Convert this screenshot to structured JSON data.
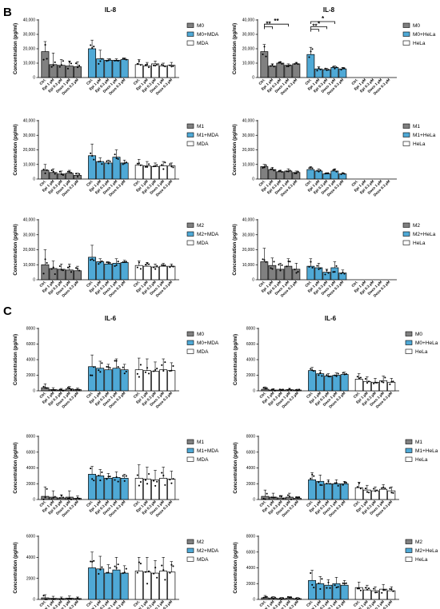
{
  "figure": {
    "panels": [
      {
        "letter": "B"
      },
      {
        "letter": "C"
      }
    ]
  },
  "x_categories": [
    "Ctrl.",
    "Epi 1 µM",
    "Epi 0.3 µM",
    "Doxo 1 µM",
    "Doxo 0.3 µM"
  ],
  "colors": {
    "macrophage": "#808080",
    "coculture": "#4fa9d6",
    "tumor": "#ffffff",
    "edge": "#000000"
  },
  "chart_data": [
    {
      "type": "bar",
      "panel": "B",
      "title": "IL-8",
      "ylabel": "Concentration (pg/ml)",
      "ylim": [
        0,
        40000
      ],
      "yticks": [
        "0",
        "10,000",
        "20,000",
        "30,000",
        "40,000"
      ],
      "categories": [
        "Ctrl.",
        "Epi 1 µM",
        "Epi 0.3 µM",
        "Doxo 1 µM",
        "Doxo 0.3 µM"
      ],
      "legend_position": "right",
      "series": [
        {
          "name": "M0",
          "values": [
            18000,
            9000,
            8500,
            8000,
            7500
          ],
          "errors": [
            7000,
            8000,
            4000,
            3500,
            3500
          ]
        },
        {
          "name": "M0+MDA",
          "values": [
            20000,
            13000,
            12000,
            12000,
            12500
          ],
          "errors": [
            6000,
            6000,
            1000,
            1000,
            1000
          ]
        },
        {
          "name": "MDA",
          "values": [
            9000,
            8000,
            9500,
            8000,
            8500
          ],
          "errors": [
            3500,
            2500,
            2000,
            2000,
            2000
          ]
        }
      ],
      "significance": []
    },
    {
      "type": "bar",
      "panel": "B",
      "title": "IL-8",
      "ylabel": "Concentration (pg/ml)",
      "ylim": [
        0,
        40000
      ],
      "yticks": [
        "0",
        "10,000",
        "20,000",
        "30,000",
        "40,000"
      ],
      "categories": [
        "Ctrl.",
        "Epi 1 µM",
        "Epi 0.3 µM",
        "Doxo 1 µM",
        "Doxo 0.3 µM"
      ],
      "legend_position": "right",
      "series": [
        {
          "name": "M0",
          "values": [
            18000,
            8000,
            10000,
            8500,
            9500
          ],
          "errors": [
            5000,
            1500,
            1000,
            1000,
            1000
          ]
        },
        {
          "name": "M0+HeLa",
          "values": [
            16000,
            6000,
            5500,
            7000,
            6000
          ],
          "errors": [
            5000,
            1500,
            1000,
            1000,
            1000
          ]
        },
        {
          "name": "HeLa",
          "values": [
            0,
            0,
            0,
            0,
            0
          ],
          "errors": [
            0,
            0,
            0,
            0,
            0
          ]
        }
      ],
      "significance": [
        {
          "group": 0,
          "from": 0,
          "to": 1,
          "label": "**",
          "level": 3
        },
        {
          "group": 0,
          "from": 0,
          "to": 3,
          "label": "**",
          "level": 4
        },
        {
          "group": 1,
          "from": 0,
          "to": 1,
          "label": "**",
          "level": 2
        },
        {
          "group": 1,
          "from": 0,
          "to": 2,
          "label": "*",
          "level": 3
        },
        {
          "group": 1,
          "from": 0,
          "to": 3,
          "label": "*",
          "level": 5
        }
      ]
    },
    {
      "type": "bar",
      "panel": "B",
      "title": "",
      "ylabel": "Concentration (pg/ml)",
      "ylim": [
        0,
        40000
      ],
      "yticks": [
        "0",
        "10,000",
        "20,000",
        "30,000",
        "40,000"
      ],
      "categories": [
        "Ctrl.",
        "Epi 1 µM",
        "Epi 0.3 µM",
        "Doxo 1 µM",
        "Doxo 0.3 µM"
      ],
      "legend_position": "right",
      "series": [
        {
          "name": "M1",
          "values": [
            6000,
            4500,
            3500,
            4000,
            2500
          ],
          "errors": [
            4000,
            2500,
            2000,
            2000,
            1500
          ]
        },
        {
          "name": "M1+MDA",
          "values": [
            16000,
            12000,
            11000,
            15000,
            11000
          ],
          "errors": [
            8000,
            2500,
            2000,
            5000,
            2000
          ]
        },
        {
          "name": "MDA",
          "values": [
            9500,
            9000,
            8500,
            9000,
            9000
          ],
          "errors": [
            4000,
            3000,
            2500,
            3000,
            2000
          ]
        }
      ],
      "significance": []
    },
    {
      "type": "bar",
      "panel": "B",
      "title": "",
      "ylabel": "Concentration (pg/ml)",
      "ylim": [
        0,
        40000
      ],
      "yticks": [
        "0",
        "10,000",
        "20,000",
        "30,000",
        "40,000"
      ],
      "categories": [
        "Ctrl.",
        "Epi 1 µM",
        "Epi 0.3 µM",
        "Doxo 1 µM",
        "Doxo 0.3 µM"
      ],
      "legend_position": "right",
      "series": [
        {
          "name": "M1",
          "values": [
            8500,
            6500,
            5000,
            5500,
            4500
          ],
          "errors": [
            1500,
            1500,
            1000,
            1500,
            1000
          ]
        },
        {
          "name": "M1+HeLa",
          "values": [
            6500,
            5500,
            3500,
            5500,
            3500
          ],
          "errors": [
            2000,
            1500,
            800,
            1500,
            800
          ]
        },
        {
          "name": "HeLa",
          "values": [
            0,
            0,
            0,
            0,
            0
          ],
          "errors": [
            0,
            0,
            0,
            0,
            0
          ]
        }
      ],
      "significance": []
    },
    {
      "type": "bar",
      "panel": "B",
      "title": "",
      "ylabel": "Concentration (pg/ml)",
      "ylim": [
        0,
        40000
      ],
      "yticks": [
        "0",
        "10,000",
        "20,000",
        "30,000",
        "40,000"
      ],
      "categories": [
        "Ctrl.",
        "Epi 1 µM",
        "Epi 0.3 µM",
        "Doxo 1 µM",
        "Doxo 0.3 µM"
      ],
      "legend_position": "right",
      "series": [
        {
          "name": "M2",
          "values": [
            10000,
            7500,
            7000,
            6500,
            6000
          ],
          "errors": [
            10000,
            5000,
            3500,
            4000,
            3000
          ]
        },
        {
          "name": "M2+MDA",
          "values": [
            15000,
            12000,
            10500,
            11000,
            11500
          ],
          "errors": [
            8000,
            2000,
            1500,
            3000,
            1500
          ]
        },
        {
          "name": "MDA",
          "values": [
            9500,
            9000,
            8500,
            9000,
            9000
          ],
          "errors": [
            3000,
            2500,
            2000,
            2000,
            1500
          ]
        }
      ],
      "significance": []
    },
    {
      "type": "bar",
      "panel": "B",
      "title": "",
      "ylabel": "Concentration (pg/ml)",
      "ylim": [
        0,
        40000
      ],
      "yticks": [
        "0",
        "10,000",
        "20,000",
        "30,000",
        "40,000"
      ],
      "categories": [
        "Ctrl.",
        "Epi 1 µM",
        "Epi 0.3 µM",
        "Doxo 1 µM",
        "Doxo 0.3 µM"
      ],
      "legend_position": "right",
      "series": [
        {
          "name": "M2",
          "values": [
            12000,
            9500,
            7000,
            9000,
            7000
          ],
          "errors": [
            9000,
            5000,
            4000,
            5000,
            4000
          ]
        },
        {
          "name": "M2+HeLa",
          "values": [
            9000,
            8000,
            5000,
            8000,
            4500
          ],
          "errors": [
            5000,
            3000,
            2000,
            4000,
            2000
          ]
        },
        {
          "name": "HeLa",
          "values": [
            0,
            0,
            0,
            0,
            0
          ],
          "errors": [
            0,
            0,
            0,
            0,
            0
          ]
        }
      ],
      "significance": []
    },
    {
      "type": "bar",
      "panel": "C",
      "title": "IL-6",
      "ylabel": "Concentration (pg/ml)",
      "ylim": [
        0,
        8000
      ],
      "yticks": [
        "0",
        "2000",
        "4000",
        "6000",
        "8000"
      ],
      "categories": [
        "Ctrl.",
        "Epi 1 µM",
        "Epi 0.3 µM",
        "Doxo 1 µM",
        "Doxo 0.3 µM"
      ],
      "legend_position": "right",
      "series": [
        {
          "name": "M0",
          "values": [
            400,
            150,
            100,
            250,
            150
          ],
          "errors": [
            500,
            250,
            200,
            300,
            200
          ]
        },
        {
          "name": "M0+MDA",
          "values": [
            3100,
            2900,
            2700,
            2900,
            2700
          ],
          "errors": [
            1500,
            900,
            700,
            1200,
            700
          ]
        },
        {
          "name": "MDA",
          "values": [
            2700,
            2600,
            2500,
            2700,
            2600
          ],
          "errors": [
            1500,
            1500,
            1200,
            1400,
            1000
          ]
        }
      ],
      "significance": []
    },
    {
      "type": "bar",
      "panel": "C",
      "title": "IL-6",
      "ylabel": "Concentration (pg/ml)",
      "ylim": [
        0,
        8000
      ],
      "yticks": [
        "0",
        "2000",
        "4000",
        "6000",
        "8000"
      ],
      "categories": [
        "Ctrl.",
        "Epi 1 µM",
        "Epi 0.3 µM",
        "Doxo 1 µM",
        "Doxo 0.3 µM"
      ],
      "legend_position": "right",
      "series": [
        {
          "name": "M0",
          "values": [
            200,
            100,
            100,
            150,
            100
          ],
          "errors": [
            300,
            150,
            100,
            150,
            100
          ]
        },
        {
          "name": "M0+HeLa",
          "values": [
            2600,
            2200,
            1900,
            2000,
            2100
          ],
          "errors": [
            400,
            400,
            300,
            300,
            300
          ]
        },
        {
          "name": "HeLa",
          "values": [
            1500,
            1200,
            1100,
            1300,
            1100
          ],
          "errors": [
            700,
            600,
            500,
            600,
            500
          ]
        }
      ],
      "significance": []
    },
    {
      "type": "bar",
      "panel": "C",
      "title": "",
      "ylabel": "Concentration (pg/ml)",
      "ylim": [
        0,
        8000
      ],
      "yticks": [
        "0",
        "2000",
        "4000",
        "6000",
        "8000"
      ],
      "categories": [
        "Ctrl.",
        "Epi 1 µM",
        "Epi 0.3 µM",
        "Doxo 1 µM",
        "Doxo 0.3 µM"
      ],
      "legend_position": "right",
      "series": [
        {
          "name": "M1",
          "values": [
            400,
            300,
            200,
            300,
            150
          ],
          "errors": [
            1200,
            800,
            400,
            800,
            300
          ]
        },
        {
          "name": "M1+MDA",
          "values": [
            3200,
            3000,
            2700,
            2800,
            2700
          ],
          "errors": [
            1000,
            800,
            600,
            700,
            500
          ]
        },
        {
          "name": "MDA",
          "values": [
            2700,
            2600,
            2500,
            2700,
            2600
          ],
          "errors": [
            1700,
            1500,
            1200,
            1400,
            1000
          ]
        }
      ],
      "significance": []
    },
    {
      "type": "bar",
      "panel": "C",
      "title": "",
      "ylabel": "Concentration (pg/ml)",
      "ylim": [
        0,
        8000
      ],
      "yticks": [
        "0",
        "2000",
        "4000",
        "6000",
        "8000"
      ],
      "categories": [
        "Ctrl.",
        "Epi 1 µM",
        "Epi 0.3 µM",
        "Doxo 1 µM",
        "Doxo 0.3 µM"
      ],
      "legend_position": "right",
      "series": [
        {
          "name": "M1",
          "values": [
            400,
            300,
            200,
            300,
            150
          ],
          "errors": [
            800,
            500,
            300,
            500,
            200
          ]
        },
        {
          "name": "M1+HeLa",
          "values": [
            2500,
            2300,
            2000,
            2000,
            2000
          ],
          "errors": [
            900,
            800,
            500,
            500,
            300
          ]
        },
        {
          "name": "HeLa",
          "values": [
            1500,
            1200,
            1100,
            1300,
            1100
          ],
          "errors": [
            700,
            600,
            500,
            600,
            500
          ]
        }
      ],
      "significance": []
    },
    {
      "type": "bar",
      "panel": "C",
      "title": "",
      "ylabel": "Concentration (pg/ml)",
      "ylim": [
        0,
        6000
      ],
      "yticks": [
        "0",
        "2000",
        "4000",
        "6000"
      ],
      "categories": [
        "Ctrl.",
        "Epi 1 µM",
        "Epi 0.3 µM",
        "Doxo 1 µM",
        "Doxo 0.3 µM"
      ],
      "legend_position": "right",
      "series": [
        {
          "name": "M2",
          "values": [
            150,
            100,
            80,
            120,
            80
          ],
          "errors": [
            300,
            200,
            150,
            200,
            150
          ]
        },
        {
          "name": "M2+MDA",
          "values": [
            3000,
            2900,
            2500,
            2800,
            2500
          ],
          "errors": [
            1500,
            1200,
            800,
            1200,
            700
          ]
        },
        {
          "name": "MDA",
          "values": [
            2700,
            2600,
            2500,
            2700,
            2600
          ],
          "errors": [
            1300,
            1400,
            1200,
            1300,
            1000
          ]
        }
      ],
      "significance": []
    },
    {
      "type": "bar",
      "panel": "C",
      "title": "",
      "ylabel": "Concentration (pg/ml)",
      "ylim": [
        0,
        8000
      ],
      "yticks": [
        "0",
        "2000",
        "4000",
        "6000",
        "8000"
      ],
      "categories": [
        "Ctrl.",
        "Epi 1 µM",
        "Epi 0.3 µM",
        "Doxo 1 µM",
        "Doxo 0.3 µM"
      ],
      "legend_position": "right",
      "series": [
        {
          "name": "M2",
          "values": [
            200,
            150,
            100,
            150,
            100
          ],
          "errors": [
            300,
            200,
            150,
            200,
            150
          ]
        },
        {
          "name": "M2+HeLa",
          "values": [
            2400,
            2000,
            1800,
            2000,
            1800
          ],
          "errors": [
            1300,
            900,
            700,
            800,
            600
          ]
        },
        {
          "name": "HeLa",
          "values": [
            1500,
            1200,
            1100,
            1300,
            1100
          ],
          "errors": [
            700,
            600,
            500,
            600,
            500
          ]
        }
      ],
      "significance": []
    }
  ]
}
